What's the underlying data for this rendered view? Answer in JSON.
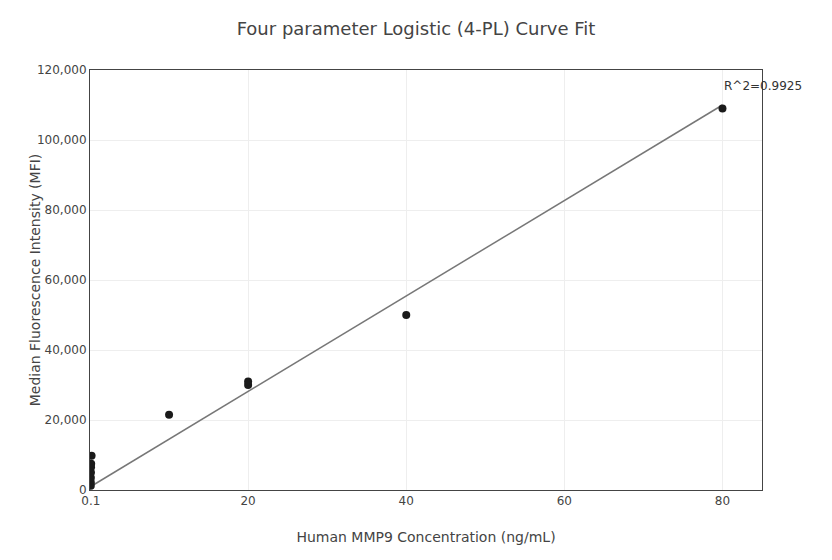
{
  "chart_data": {
    "type": "scatter",
    "title": "Four parameter Logistic (4-PL) Curve Fit",
    "xlabel": "Human MMP9 Concentration (ng/mL)",
    "ylabel": "Median Fluorescence Intensity (MFI)",
    "series": [
      {
        "type": "line",
        "color": "#777777",
        "x": [
          0.1,
          80
        ],
        "values": [
          1000,
          110000
        ]
      },
      {
        "type": "scatter",
        "color": "#1a1a1a",
        "x": [
          0.1,
          0.1,
          0.11,
          0.12,
          0.13,
          0.15,
          0.2,
          10,
          20,
          20,
          40,
          80
        ],
        "values": [
          1200,
          2200,
          3500,
          5000,
          6500,
          7500,
          9800,
          21500,
          30000,
          31000,
          50000,
          109000
        ]
      }
    ],
    "annotations": [
      {
        "text": "R^2=0.9925",
        "x": 80,
        "y": 113000
      }
    ],
    "xlim": [
      0.0,
      85
    ],
    "ylim": [
      0,
      120000
    ],
    "xticks": [
      0.1,
      20,
      40,
      60,
      80
    ],
    "yticks": [
      0,
      {
        "value": 20000,
        "label": "20,000"
      },
      {
        "value": 40000,
        "label": "40,000"
      },
      {
        "value": 60000,
        "label": "60,000"
      },
      {
        "value": 80000,
        "label": "80,000"
      },
      {
        "value": 100000,
        "label": "100,000"
      },
      {
        "value": 120000,
        "label": "120,000"
      }
    ],
    "grid": true
  }
}
